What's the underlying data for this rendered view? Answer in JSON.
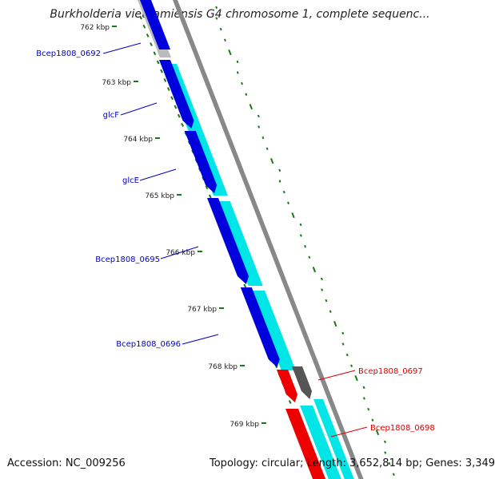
{
  "header": {
    "title": "Burkholderia vietnamiensis G4 chromosome 1, complete sequenc..."
  },
  "ruler": {
    "ticks": [
      "762 kbp",
      "763 kbp",
      "764 kbp",
      "765 kbp",
      "766 kbp",
      "767 kbp",
      "768 kbp",
      "769 kbp"
    ]
  },
  "genes": [
    {
      "label": "Bcep1808_0692",
      "color": "#0000cc"
    },
    {
      "label": "glcF",
      "color": "#0000cc"
    },
    {
      "label": "glcE",
      "color": "#0000cc"
    },
    {
      "label": "Bcep1808_0695",
      "color": "#0000cc"
    },
    {
      "label": "Bcep1808_0696",
      "color": "#0000cc"
    },
    {
      "label": "Bcep1808_0697",
      "color": "#dd0000"
    },
    {
      "label": "Bcep1808_0698",
      "color": "#dd0000"
    }
  ],
  "colors": {
    "cds_forward": "#0000dd",
    "cog_cyan": "#00e5e5",
    "cog_gray": "#bbbbbb",
    "cds_reverse": "#ee0000",
    "dark_gray": "#555555",
    "backbone": "#888888",
    "gc_ticks": "#1a7a1a"
  },
  "footer": {
    "accession": "Accession: NC_009256",
    "stats": "Topology: circular; Length: 3,652,814 bp; Genes: 3,349"
  }
}
